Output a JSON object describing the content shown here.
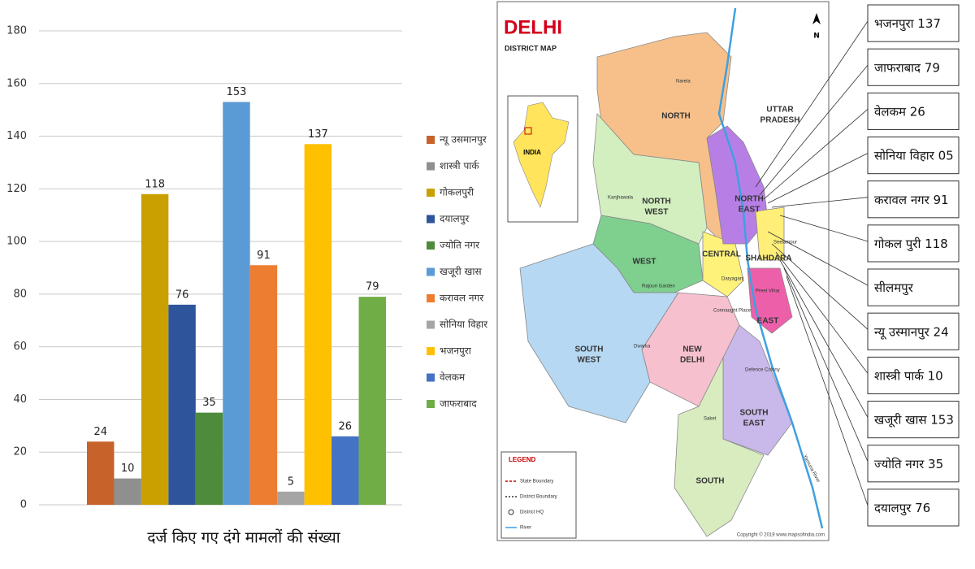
{
  "chart_data": {
    "type": "bar",
    "title": "दर्ज किए गए दंगे मामलों की संख्या",
    "categories": [
      "न्यू उसमानपुर",
      "शास्त्री पार्क",
      "गोकलपुरी",
      "दयालपुर",
      "ज्योति नगर",
      "खजूरी खास",
      "करावल नगर",
      "सोनिया विहार",
      "भजनपुरा",
      "वेलकम",
      "जाफराबाद"
    ],
    "values": [
      24,
      10,
      118,
      76,
      35,
      153,
      91,
      5,
      137,
      26,
      79
    ],
    "colors": [
      "#c8622b",
      "#8f8f8f",
      "#c9a000",
      "#2e559c",
      "#4e8b3a",
      "#5b9bd5",
      "#ed7d31",
      "#a5a5a5",
      "#ffc000",
      "#4472c4",
      "#70ad47"
    ],
    "ylim": [
      0,
      180
    ],
    "yticks": [
      0,
      20,
      40,
      60,
      80,
      100,
      120,
      140,
      160,
      180
    ],
    "grid": true
  },
  "map": {
    "title": "DELHI",
    "subtitle": "DISTRICT MAP",
    "north": "N",
    "districts": [
      [
        "NORTH"
      ],
      [
        "NORTH",
        "WEST"
      ],
      [
        "WEST"
      ],
      [
        "CENTRAL"
      ],
      [
        "NORTH",
        "EAST"
      ],
      [
        "SHAHDARA"
      ],
      [
        "EAST"
      ],
      [
        "NEW",
        "DELHI"
      ],
      [
        "SOUTH",
        "WEST"
      ],
      [
        "SOUTH",
        "EAST"
      ],
      [
        "SOUTH"
      ],
      [
        "UTTAR",
        "PRADESH"
      ]
    ],
    "places": [
      "Narela",
      "Kanjhawala",
      "Rajouri Garden",
      "Dwarka",
      "Daryaganj",
      "Connaught Place",
      "Saket",
      "Defence Colony",
      "Preet Vihar",
      "Seelampur",
      "Yamuna River"
    ],
    "inset": "INDIA",
    "legend_title": "LEGEND",
    "legend": [
      "State Boundary",
      "District Boundary",
      "District HQ",
      "River"
    ],
    "copyright": "Copyright © 2019 www.mapsofindia.com",
    "callouts": [
      "भजनपुरा 137",
      "जाफराबाद 79",
      "वेलकम 26",
      "सोनिया विहार 05",
      "करावल नगर 91",
      "गोकल पुरी 118",
      "सीलमपुर",
      "न्यू उस्मानपुर 24",
      "शास्त्री पार्क 10",
      "खजूरी खास 153",
      "ज्योति नगर 35",
      "दयालपुर 76"
    ]
  }
}
